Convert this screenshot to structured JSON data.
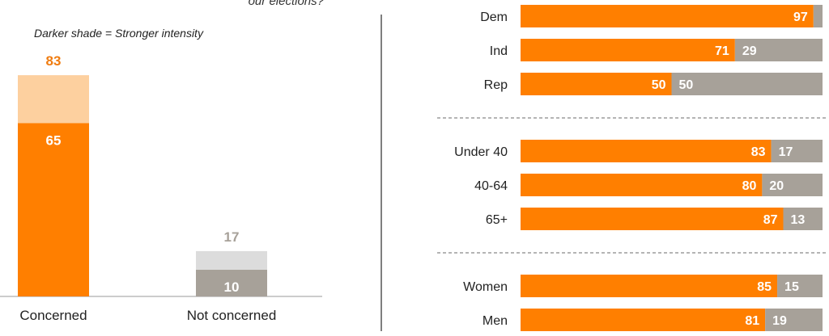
{
  "header_fragment": "our elections?",
  "left_panel": {
    "subtitle": "Darker shade = Stronger intensity"
  },
  "colors": {
    "orange": "#ff7f00",
    "orange_light": "#fdd09f",
    "gray": "#a7a199",
    "gray_light": "#dcdcdc",
    "total_orange_text": "#f07c10",
    "total_gray_text": "#a7a199",
    "divider": "#555555",
    "dashed": "#888888"
  },
  "chart_data": [
    {
      "type": "bar",
      "stacked": true,
      "categories": [
        "Concerned",
        "Not concerned"
      ],
      "series": [
        {
          "name": "",
          "values": [
            65,
            10
          ]
        },
        {
          "name": "",
          "values": [
            18,
            7
          ]
        }
      ],
      "totals": [
        "83",
        "17"
      ],
      "strong_labels": [
        "65",
        "10"
      ],
      "ylim": [
        0,
        100
      ],
      "grid": false
    },
    {
      "type": "bar",
      "orientation": "horizontal",
      "stacked": true,
      "groups": [
        {
          "rows": [
            {
              "label": "Dem",
              "concerned": 97,
              "not_concerned": 3,
              "c_label": "97",
              "n_label": ""
            },
            {
              "label": "Ind",
              "concerned": 71,
              "not_concerned": 29,
              "c_label": "71",
              "n_label": "29"
            },
            {
              "label": "Rep",
              "concerned": 50,
              "not_concerned": 50,
              "c_label": "50",
              "n_label": "50"
            }
          ]
        },
        {
          "rows": [
            {
              "label": "Under 40",
              "concerned": 83,
              "not_concerned": 17,
              "c_label": "83",
              "n_label": "17"
            },
            {
              "label": "40-64",
              "concerned": 80,
              "not_concerned": 20,
              "c_label": "80",
              "n_label": "20"
            },
            {
              "label": "65+",
              "concerned": 87,
              "not_concerned": 13,
              "c_label": "87",
              "n_label": "13"
            }
          ]
        },
        {
          "rows": [
            {
              "label": "Women",
              "concerned": 85,
              "not_concerned": 15,
              "c_label": "85",
              "n_label": "15"
            },
            {
              "label": "Men",
              "concerned": 81,
              "not_concerned": 19,
              "c_label": "81",
              "n_label": "19"
            }
          ]
        }
      ],
      "xlim": [
        0,
        100
      ],
      "grid": false
    }
  ]
}
